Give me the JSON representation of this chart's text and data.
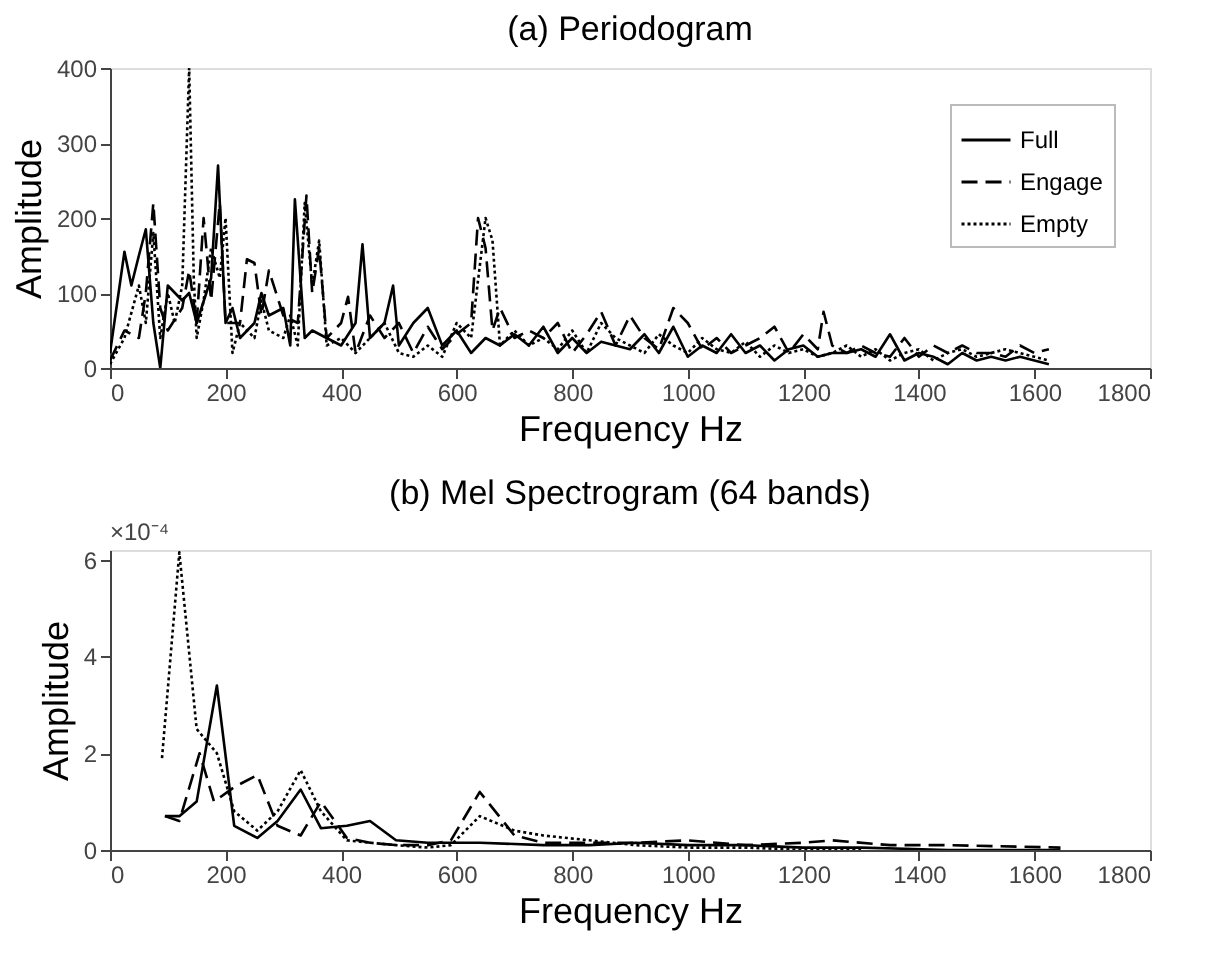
{
  "chart_data": [
    {
      "type": "line",
      "title": "(a) Periodogram",
      "xlabel": "Frequency Hz",
      "ylabel": "Amplitude",
      "xlim": [
        0,
        1800
      ],
      "xticks": [
        0,
        200,
        400,
        600,
        800,
        1000,
        1200,
        1400,
        1600,
        1800
      ],
      "ylim": [
        0,
        400
      ],
      "yticks": [
        0,
        100,
        200,
        300,
        400
      ],
      "grid": false,
      "legend": "top right",
      "series": [
        {
          "name": "Full",
          "color": "#000000",
          "line_style": "solid",
          "x": [
            0,
            25,
            37,
            50,
            62,
            75,
            87,
            100,
            125,
            137,
            150,
            175,
            187,
            200,
            212,
            225,
            250,
            262,
            275,
            300,
            312,
            320,
            337,
            350,
            375,
            400,
            425,
            437,
            450,
            475,
            490,
            500,
            525,
            550,
            575,
            600,
            625,
            650,
            675,
            700,
            725,
            750,
            775,
            800,
            825,
            850,
            875,
            900,
            925,
            950,
            975,
            1000,
            1025,
            1050,
            1075,
            1100,
            1125,
            1150,
            1175,
            1200,
            1225,
            1250,
            1275,
            1300,
            1325,
            1350,
            1375,
            1400,
            1425,
            1450,
            1475,
            1500,
            1525,
            1550,
            1575,
            1600,
            1625
          ],
          "values": [
            20,
            155,
            110,
            150,
            185,
            60,
            0,
            110,
            90,
            100,
            60,
            120,
            270,
            60,
            80,
            40,
            60,
            100,
            70,
            80,
            30,
            225,
            40,
            50,
            40,
            30,
            60,
            165,
            40,
            60,
            110,
            30,
            60,
            80,
            30,
            50,
            20,
            40,
            30,
            45,
            30,
            55,
            20,
            40,
            20,
            35,
            30,
            25,
            45,
            20,
            55,
            15,
            30,
            20,
            45,
            20,
            30,
            10,
            25,
            30,
            15,
            20,
            20,
            25,
            15,
            45,
            10,
            20,
            15,
            5,
            20,
            10,
            15,
            10,
            15,
            10,
            5
          ]
        },
        {
          "name": "Engage",
          "color": "#000000",
          "line_style": "dashed",
          "x": [
            0,
            25,
            50,
            62,
            75,
            87,
            100,
            125,
            137,
            150,
            162,
            175,
            190,
            200,
            225,
            237,
            250,
            262,
            275,
            300,
            325,
            340,
            350,
            362,
            375,
            400,
            412,
            425,
            450,
            475,
            500,
            525,
            550,
            575,
            600,
            625,
            637,
            650,
            662,
            675,
            700,
            725,
            750,
            775,
            800,
            825,
            850,
            875,
            900,
            925,
            950,
            975,
            1000,
            1025,
            1050,
            1075,
            1100,
            1125,
            1150,
            1175,
            1200,
            1225,
            1235,
            1250,
            1275,
            1300,
            1325,
            1350,
            1375,
            1400,
            1425,
            1450,
            1475,
            1500,
            1525,
            1550,
            1575,
            1600,
            1625
          ],
          "values": [
            10,
            50,
            40,
            100,
            220,
            80,
            50,
            80,
            130,
            60,
            200,
            90,
            220,
            60,
            60,
            145,
            140,
            70,
            130,
            70,
            60,
            230,
            100,
            160,
            40,
            60,
            95,
            20,
            70,
            40,
            60,
            20,
            55,
            25,
            45,
            60,
            200,
            160,
            50,
            80,
            40,
            50,
            40,
            60,
            20,
            45,
            75,
            30,
            70,
            40,
            25,
            80,
            60,
            25,
            40,
            20,
            30,
            40,
            55,
            20,
            45,
            25,
            75,
            30,
            20,
            30,
            20,
            15,
            40,
            15,
            30,
            20,
            30,
            20,
            20,
            15,
            30,
            20,
            25
          ]
        },
        {
          "name": "Empty",
          "color": "#000000",
          "line_style": "dotted",
          "x": [
            0,
            25,
            50,
            62,
            75,
            87,
            100,
            112,
            125,
            137,
            145,
            150,
            162,
            175,
            190,
            200,
            212,
            225,
            250,
            262,
            275,
            300,
            312,
            325,
            337,
            350,
            362,
            375,
            400,
            425,
            450,
            475,
            500,
            525,
            550,
            575,
            600,
            625,
            650,
            662,
            675,
            700,
            725,
            750,
            775,
            800,
            825,
            850,
            875,
            900,
            925,
            950,
            975,
            1000,
            1025,
            1050,
            1075,
            1100,
            1125,
            1150,
            1175,
            1200,
            1225,
            1250,
            1275,
            1300,
            1325,
            1350,
            1375,
            1400,
            1425,
            1450,
            1475,
            1500,
            1525,
            1550,
            1575,
            1600,
            1625
          ],
          "values": [
            5,
            40,
            110,
            60,
            180,
            40,
            100,
            60,
            110,
            400,
            120,
            40,
            90,
            160,
            120,
            200,
            20,
            60,
            40,
            90,
            50,
            40,
            70,
            30,
            220,
            110,
            170,
            30,
            40,
            20,
            40,
            60,
            20,
            15,
            30,
            15,
            60,
            40,
            200,
            170,
            30,
            50,
            30,
            40,
            25,
            50,
            20,
            60,
            40,
            30,
            20,
            45,
            30,
            20,
            40,
            25,
            20,
            35,
            15,
            30,
            20,
            25,
            15,
            20,
            30,
            15,
            25,
            10,
            20,
            25,
            10,
            20,
            25,
            15,
            20,
            25,
            20,
            15,
            10
          ]
        }
      ]
    },
    {
      "type": "line",
      "title": "(b) Mel Spectrogram (64 bands)",
      "xlabel": "Frequency Hz",
      "ylabel": "Amplitude",
      "annotations": [
        "×10⁻⁴"
      ],
      "xlim": [
        0,
        1800
      ],
      "xticks": [
        0,
        200,
        400,
        600,
        800,
        1000,
        1200,
        1400,
        1600,
        1800
      ],
      "ylim": [
        0,
        6.2
      ],
      "yticks": [
        0,
        2,
        4,
        6
      ],
      "grid": false,
      "legend": "top right",
      "series": [
        {
          "name": "Full",
          "color": "#000000",
          "line_style": "solid",
          "x": [
            95,
            120,
            150,
            185,
            215,
            255,
            290,
            330,
            365,
            410,
            450,
            495,
            550,
            640,
            750,
            830,
            910,
            1000,
            1100,
            1200,
            1300,
            1450,
            1645
          ],
          "values": [
            0.7,
            0.7,
            1.0,
            3.4,
            0.5,
            0.25,
            0.6,
            1.25,
            0.45,
            0.5,
            0.6,
            0.2,
            0.15,
            0.15,
            0.1,
            0.1,
            0.15,
            0.1,
            0.1,
            0.05,
            0.05,
            0.0,
            0.0
          ]
        },
        {
          "name": "Engage",
          "color": "#000000",
          "line_style": "dashed",
          "x": [
            95,
            120,
            155,
            180,
            215,
            255,
            290,
            330,
            365,
            410,
            450,
            495,
            550,
            590,
            640,
            700,
            750,
            830,
            910,
            1000,
            1100,
            1200,
            1250,
            1350,
            1450,
            1645
          ],
          "values": [
            0.7,
            0.6,
            2.0,
            1.0,
            1.3,
            1.55,
            0.5,
            0.3,
            1.0,
            0.25,
            0.15,
            0.1,
            0.1,
            0.2,
            1.2,
            0.3,
            0.15,
            0.15,
            0.15,
            0.2,
            0.1,
            0.15,
            0.2,
            0.1,
            0.1,
            0.05
          ]
        },
        {
          "name": "Empty",
          "color": "#000000",
          "line_style": "dotted",
          "x": [
            90,
            120,
            150,
            185,
            215,
            255,
            290,
            330,
            365,
            410,
            450,
            495,
            550,
            590,
            640,
            700,
            750,
            830,
            910,
            1000,
            1100,
            1200,
            1300
          ],
          "values": [
            1.9,
            6.15,
            2.5,
            2.0,
            0.8,
            0.4,
            0.8,
            1.65,
            0.8,
            0.2,
            0.15,
            0.1,
            0.05,
            0.1,
            0.7,
            0.4,
            0.3,
            0.2,
            0.1,
            0.05,
            0.05,
            0.0,
            0.0
          ]
        }
      ]
    }
  ]
}
